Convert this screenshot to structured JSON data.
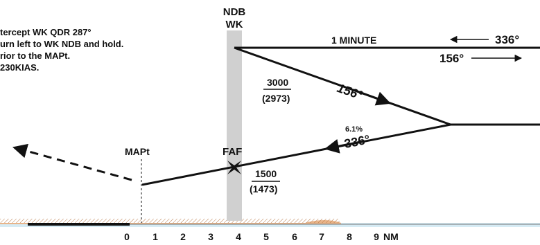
{
  "notes": [
    "tercept WK QDR 287°",
    "urn left to WK NDB and hold.",
    "rior to the MAPt.",
    "230KIAS."
  ],
  "navaid": {
    "type": "NDB",
    "ident": "WK"
  },
  "holding": {
    "time": "1 MINUTE",
    "inbound": "336°",
    "outbound": "156°"
  },
  "outbound_leg": {
    "course": "156°",
    "altitude": "3000",
    "altitude_paren": "(2973)"
  },
  "final": {
    "course": "336°",
    "gradient": "6.1%",
    "faf_label": "FAF",
    "faf_altitude": "1500",
    "faf_altitude_paren": "(1473)"
  },
  "mapt_label": "MAPt",
  "distance_scale": {
    "ticks": [
      "0",
      "1",
      "2",
      "3",
      "4",
      "5",
      "6",
      "7",
      "8",
      "9"
    ],
    "unit": "NM"
  },
  "colors": {
    "ink": "#111111",
    "ndb_band": "#d0d0d0",
    "terrain": "#e8b489",
    "water": "#d6ebf4"
  }
}
